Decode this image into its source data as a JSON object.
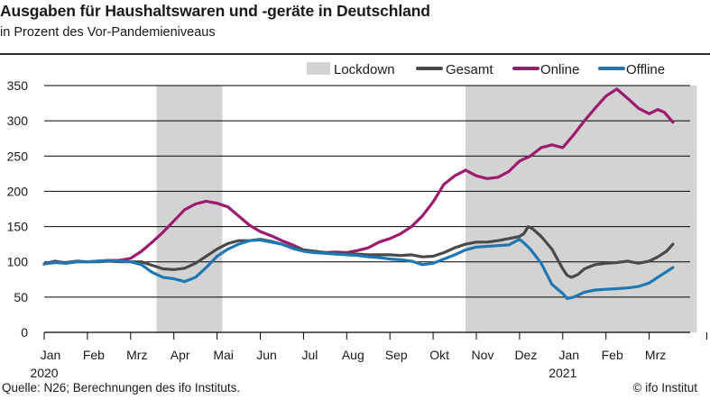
{
  "header": {
    "title": "Ausgaben für Haushaltswaren und -geräte in Deutschland",
    "subtitle": "in Prozent des Vor-Pandemieniveaus"
  },
  "footer": {
    "source": "Quelle: N26; Berechnungen des ifo Instituts.",
    "credit": "© ifo Institut"
  },
  "chart_data": {
    "type": "line",
    "title": "Ausgaben für Haushaltswaren und -geräte in Deutschland",
    "subtitle": "in Prozent des Vor-Pandemieniveaus",
    "x_unit": "months since Jan 2020",
    "xlim": [
      0,
      15.5
    ],
    "ylim": [
      0,
      350
    ],
    "y_ticks": [
      0,
      50,
      100,
      150,
      200,
      250,
      300,
      350
    ],
    "x_ticks": [
      {
        "x": 0,
        "label": "Jan",
        "sub": "2020"
      },
      {
        "x": 1,
        "label": "Feb",
        "sub": ""
      },
      {
        "x": 2,
        "label": "Mrz",
        "sub": ""
      },
      {
        "x": 3,
        "label": "Apr",
        "sub": ""
      },
      {
        "x": 4,
        "label": "Mai",
        "sub": ""
      },
      {
        "x": 5,
        "label": "Jun",
        "sub": ""
      },
      {
        "x": 6,
        "label": "Jul",
        "sub": ""
      },
      {
        "x": 7,
        "label": "Aug",
        "sub": ""
      },
      {
        "x": 8,
        "label": "Sep",
        "sub": ""
      },
      {
        "x": 9,
        "label": "Okt",
        "sub": ""
      },
      {
        "x": 10,
        "label": "Nov",
        "sub": ""
      },
      {
        "x": 11,
        "label": "Dez",
        "sub": ""
      },
      {
        "x": 12,
        "label": "Jan",
        "sub": "2021"
      },
      {
        "x": 13,
        "label": "Feb",
        "sub": ""
      },
      {
        "x": 14,
        "label": "Mrz",
        "sub": ""
      }
    ],
    "grid": "horizontal",
    "legend_position": "top-right",
    "lockdowns": [
      {
        "label": "Lockdown",
        "start": 2.6,
        "end": 4.12
      },
      {
        "label": "Lockdown",
        "start": 9.75,
        "end": 15.1
      }
    ],
    "legend": [
      {
        "key": "lockdown",
        "label": "Lockdown",
        "color": "#d3d3d3"
      },
      {
        "key": "gesamt",
        "label": "Gesamt",
        "color": "#4a4a4a"
      },
      {
        "key": "online",
        "label": "Online",
        "color": "#9b1b6f"
      },
      {
        "key": "offline",
        "label": "Offline",
        "color": "#1f77b4"
      }
    ],
    "series": [
      {
        "key": "gesamt",
        "name": "Gesamt",
        "color": "#4a4a4a",
        "points": [
          [
            0,
            97
          ],
          [
            0.25,
            100
          ],
          [
            0.5,
            99
          ],
          [
            0.75,
            101
          ],
          [
            1,
            100
          ],
          [
            1.25,
            100
          ],
          [
            1.5,
            101
          ],
          [
            1.75,
            100
          ],
          [
            2,
            100
          ],
          [
            2.25,
            100
          ],
          [
            2.5,
            95
          ],
          [
            2.75,
            90
          ],
          [
            3,
            89
          ],
          [
            3.25,
            91
          ],
          [
            3.5,
            98
          ],
          [
            3.75,
            108
          ],
          [
            4,
            118
          ],
          [
            4.25,
            126
          ],
          [
            4.5,
            130
          ],
          [
            4.75,
            130
          ],
          [
            5,
            132
          ],
          [
            5.25,
            129
          ],
          [
            5.5,
            125
          ],
          [
            5.75,
            120
          ],
          [
            6,
            117
          ],
          [
            6.25,
            115
          ],
          [
            6.5,
            113
          ],
          [
            6.75,
            112
          ],
          [
            7,
            111
          ],
          [
            7.25,
            111
          ],
          [
            7.5,
            110
          ],
          [
            7.75,
            110
          ],
          [
            8,
            110
          ],
          [
            8.25,
            109
          ],
          [
            8.5,
            110
          ],
          [
            8.75,
            107
          ],
          [
            9,
            108
          ],
          [
            9.25,
            113
          ],
          [
            9.5,
            120
          ],
          [
            9.75,
            125
          ],
          [
            10,
            128
          ],
          [
            10.25,
            128
          ],
          [
            10.5,
            130
          ],
          [
            10.75,
            133
          ],
          [
            11,
            136
          ],
          [
            11.1,
            140
          ],
          [
            11.2,
            150
          ],
          [
            11.3,
            147
          ],
          [
            11.5,
            136
          ],
          [
            11.75,
            118
          ],
          [
            12,
            90
          ],
          [
            12.1,
            81
          ],
          [
            12.2,
            78
          ],
          [
            12.35,
            82
          ],
          [
            12.5,
            90
          ],
          [
            12.75,
            96
          ],
          [
            13,
            98
          ],
          [
            13.25,
            99
          ],
          [
            13.5,
            101
          ],
          [
            13.75,
            98
          ],
          [
            14,
            101
          ],
          [
            14.2,
            107
          ],
          [
            14.4,
            115
          ],
          [
            14.55,
            125
          ]
        ]
      },
      {
        "key": "online",
        "name": "Online",
        "color": "#9b1b6f",
        "points": [
          [
            0,
            97
          ],
          [
            0.25,
            101
          ],
          [
            0.5,
            98
          ],
          [
            0.75,
            100
          ],
          [
            1,
            100
          ],
          [
            1.25,
            101
          ],
          [
            1.5,
            102
          ],
          [
            1.75,
            102
          ],
          [
            2,
            105
          ],
          [
            2.25,
            115
          ],
          [
            2.5,
            128
          ],
          [
            2.75,
            142
          ],
          [
            3,
            158
          ],
          [
            3.25,
            174
          ],
          [
            3.5,
            182
          ],
          [
            3.75,
            186
          ],
          [
            4,
            183
          ],
          [
            4.25,
            178
          ],
          [
            4.5,
            165
          ],
          [
            4.75,
            152
          ],
          [
            5,
            143
          ],
          [
            5.25,
            137
          ],
          [
            5.5,
            130
          ],
          [
            5.75,
            124
          ],
          [
            6,
            117
          ],
          [
            6.25,
            115
          ],
          [
            6.5,
            113
          ],
          [
            6.75,
            114
          ],
          [
            7,
            113
          ],
          [
            7.25,
            116
          ],
          [
            7.5,
            120
          ],
          [
            7.75,
            128
          ],
          [
            8,
            133
          ],
          [
            8.25,
            140
          ],
          [
            8.5,
            150
          ],
          [
            8.75,
            165
          ],
          [
            9,
            185
          ],
          [
            9.25,
            210
          ],
          [
            9.5,
            222
          ],
          [
            9.75,
            230
          ],
          [
            10,
            222
          ],
          [
            10.25,
            218
          ],
          [
            10.5,
            220
          ],
          [
            10.75,
            228
          ],
          [
            11,
            243
          ],
          [
            11.25,
            250
          ],
          [
            11.5,
            262
          ],
          [
            11.75,
            266
          ],
          [
            12,
            262
          ],
          [
            12.25,
            280
          ],
          [
            12.5,
            300
          ],
          [
            12.75,
            318
          ],
          [
            13,
            335
          ],
          [
            13.25,
            345
          ],
          [
            13.5,
            332
          ],
          [
            13.75,
            318
          ],
          [
            14,
            310
          ],
          [
            14.2,
            316
          ],
          [
            14.35,
            312
          ],
          [
            14.55,
            298
          ]
        ]
      },
      {
        "key": "offline",
        "name": "Offline",
        "color": "#1f77b4",
        "points": [
          [
            0,
            97
          ],
          [
            0.25,
            99
          ],
          [
            0.5,
            98
          ],
          [
            0.75,
            100
          ],
          [
            1,
            100
          ],
          [
            1.25,
            101
          ],
          [
            1.5,
            102
          ],
          [
            1.75,
            101
          ],
          [
            2,
            100
          ],
          [
            2.25,
            96
          ],
          [
            2.5,
            85
          ],
          [
            2.75,
            78
          ],
          [
            3,
            76
          ],
          [
            3.25,
            72
          ],
          [
            3.5,
            78
          ],
          [
            3.75,
            92
          ],
          [
            4,
            108
          ],
          [
            4.25,
            118
          ],
          [
            4.5,
            125
          ],
          [
            4.75,
            130
          ],
          [
            5,
            131
          ],
          [
            5.25,
            128
          ],
          [
            5.5,
            125
          ],
          [
            5.75,
            119
          ],
          [
            6,
            115
          ],
          [
            6.25,
            113
          ],
          [
            6.5,
            112
          ],
          [
            6.75,
            111
          ],
          [
            7,
            110
          ],
          [
            7.25,
            109
          ],
          [
            7.5,
            107
          ],
          [
            7.75,
            106
          ],
          [
            8,
            104
          ],
          [
            8.25,
            103
          ],
          [
            8.5,
            101
          ],
          [
            8.75,
            96
          ],
          [
            9,
            98
          ],
          [
            9.25,
            104
          ],
          [
            9.5,
            110
          ],
          [
            9.75,
            117
          ],
          [
            10,
            121
          ],
          [
            10.25,
            122
          ],
          [
            10.5,
            123
          ],
          [
            10.75,
            124
          ],
          [
            11,
            132
          ],
          [
            11.1,
            127
          ],
          [
            11.25,
            118
          ],
          [
            11.5,
            98
          ],
          [
            11.75,
            68
          ],
          [
            12,
            55
          ],
          [
            12.1,
            48
          ],
          [
            12.25,
            50
          ],
          [
            12.5,
            57
          ],
          [
            12.75,
            60
          ],
          [
            13,
            61
          ],
          [
            13.25,
            62
          ],
          [
            13.5,
            63
          ],
          [
            13.75,
            65
          ],
          [
            14,
            70
          ],
          [
            14.2,
            78
          ],
          [
            14.4,
            86
          ],
          [
            14.55,
            92
          ]
        ]
      }
    ]
  }
}
